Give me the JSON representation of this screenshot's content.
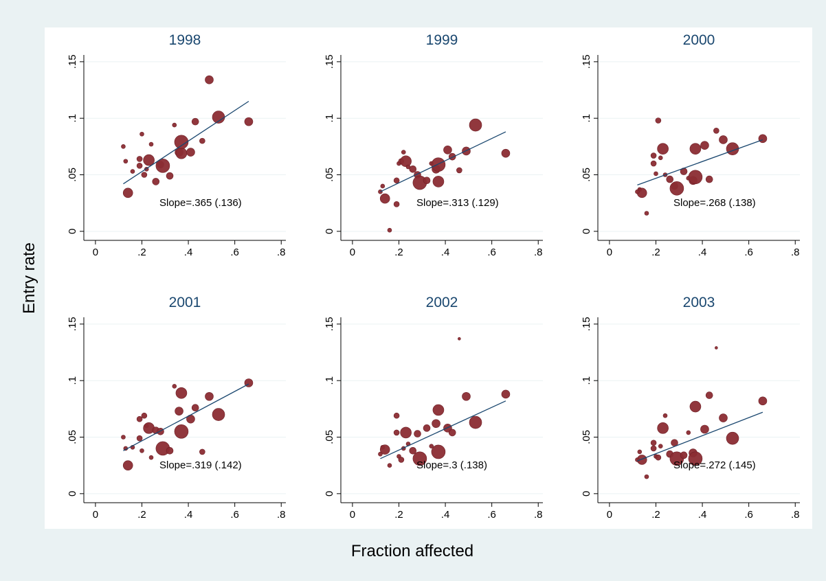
{
  "xlabel": "Fraction affected",
  "ylabel": "Entry rate",
  "chart_data": [
    {
      "type": "scatter",
      "title": "1998",
      "annotation": "Slope=.365 (.136)",
      "x": [
        0.13,
        0.14,
        0.12,
        0.16,
        0.19,
        0.2,
        0.19,
        0.21,
        0.22,
        0.23,
        0.24,
        0.26,
        0.28,
        0.29,
        0.32,
        0.34,
        0.36,
        0.37,
        0.37,
        0.41,
        0.43,
        0.46,
        0.49,
        0.53,
        0.66
      ],
      "y": [
        0.062,
        0.034,
        0.075,
        0.053,
        0.058,
        0.086,
        0.064,
        0.05,
        0.055,
        0.063,
        0.077,
        0.044,
        0.059,
        0.058,
        0.049,
        0.094,
        0.07,
        0.069,
        0.079,
        0.07,
        0.097,
        0.08,
        0.134,
        0.101,
        0.097
      ],
      "sizes": [
        3,
        7,
        3,
        3,
        4,
        3,
        4,
        4,
        3,
        8,
        3,
        5,
        5,
        10,
        5,
        3,
        6,
        8,
        10,
        6,
        5,
        4,
        6,
        9,
        6
      ],
      "fit_x": [
        0.12,
        0.66
      ],
      "fit_y": [
        0.042,
        0.115
      ],
      "color": "#8b2c33",
      "fit_color": "#1a476f",
      "xlim": [
        -0.05,
        0.82
      ],
      "ylim": [
        -0.008,
        0.156
      ],
      "xticks": [
        0,
        {
          "value": 0.2,
          "label": ".2"
        },
        {
          "value": 0.4,
          "label": ".4"
        },
        {
          "value": 0.6,
          "label": ".6"
        },
        {
          "value": 0.8,
          "label": ".8"
        }
      ],
      "yticks": [
        0,
        {
          "value": 0.05,
          "label": ".05"
        },
        {
          "value": 0.1,
          "label": ".1"
        },
        {
          "value": 0.15,
          "label": ".15"
        }
      ],
      "grid": true
    },
    {
      "type": "scatter",
      "title": "1999",
      "annotation": "Slope=.313 (.129)",
      "x": [
        0.13,
        0.14,
        0.12,
        0.16,
        0.19,
        0.2,
        0.19,
        0.21,
        0.22,
        0.23,
        0.24,
        0.26,
        0.28,
        0.29,
        0.32,
        0.34,
        0.36,
        0.37,
        0.37,
        0.41,
        0.43,
        0.46,
        0.49,
        0.53,
        0.66
      ],
      "y": [
        0.04,
        0.029,
        0.035,
        0.001,
        0.024,
        0.06,
        0.045,
        0.062,
        0.07,
        0.062,
        0.057,
        0.055,
        0.05,
        0.043,
        0.045,
        0.06,
        0.055,
        0.044,
        0.059,
        0.072,
        0.066,
        0.054,
        0.071,
        0.094,
        0.069
      ],
      "sizes": [
        3,
        7,
        3,
        3,
        4,
        3,
        4,
        4,
        3,
        8,
        3,
        5,
        5,
        10,
        5,
        3,
        6,
        8,
        10,
        6,
        5,
        4,
        6,
        9,
        6
      ],
      "fit_x": [
        0.12,
        0.66
      ],
      "fit_y": [
        0.035,
        0.088
      ],
      "color": "#8b2c33",
      "fit_color": "#1a476f",
      "xlim": [
        -0.05,
        0.82
      ],
      "ylim": [
        -0.008,
        0.156
      ],
      "xticks": [
        0,
        {
          "value": 0.2,
          "label": ".2"
        },
        {
          "value": 0.4,
          "label": ".4"
        },
        {
          "value": 0.6,
          "label": ".6"
        },
        {
          "value": 0.8,
          "label": ".8"
        }
      ],
      "yticks": [
        0,
        {
          "value": 0.05,
          "label": ".05"
        },
        {
          "value": 0.1,
          "label": ".1"
        },
        {
          "value": 0.15,
          "label": ".15"
        }
      ],
      "grid": true
    },
    {
      "type": "scatter",
      "title": "2000",
      "annotation": "Slope=.268 (.138)",
      "x": [
        0.13,
        0.14,
        0.12,
        0.16,
        0.19,
        0.2,
        0.19,
        0.21,
        0.22,
        0.23,
        0.24,
        0.26,
        0.28,
        0.29,
        0.32,
        0.34,
        0.36,
        0.37,
        0.37,
        0.41,
        0.43,
        0.46,
        0.49,
        0.53,
        0.66
      ],
      "y": [
        0.037,
        0.034,
        0.035,
        0.016,
        0.067,
        0.051,
        0.06,
        0.098,
        0.065,
        0.073,
        0.05,
        0.046,
        0.04,
        0.038,
        0.053,
        0.047,
        0.045,
        0.073,
        0.048,
        0.076,
        0.046,
        0.089,
        0.081,
        0.073,
        0.082
      ],
      "sizes": [
        3,
        7,
        3,
        3,
        4,
        3,
        4,
        4,
        3,
        8,
        3,
        5,
        5,
        10,
        5,
        3,
        6,
        8,
        10,
        6,
        5,
        4,
        6,
        9,
        6
      ],
      "fit_x": [
        0.12,
        0.66
      ],
      "fit_y": [
        0.041,
        0.081
      ],
      "color": "#8b2c33",
      "fit_color": "#1a476f",
      "xlim": [
        -0.05,
        0.82
      ],
      "ylim": [
        -0.008,
        0.156
      ],
      "xticks": [
        0,
        {
          "value": 0.2,
          "label": ".2"
        },
        {
          "value": 0.4,
          "label": ".4"
        },
        {
          "value": 0.6,
          "label": ".6"
        },
        {
          "value": 0.8,
          "label": ".8"
        }
      ],
      "yticks": [
        0,
        {
          "value": 0.05,
          "label": ".05"
        },
        {
          "value": 0.1,
          "label": ".1"
        },
        {
          "value": 0.15,
          "label": ".15"
        }
      ],
      "grid": true
    },
    {
      "type": "scatter",
      "title": "2001",
      "annotation": "Slope=.319 (.142)",
      "x": [
        0.13,
        0.14,
        0.12,
        0.16,
        0.19,
        0.2,
        0.19,
        0.21,
        0.22,
        0.23,
        0.24,
        0.26,
        0.28,
        0.29,
        0.32,
        0.34,
        0.36,
        0.37,
        0.37,
        0.41,
        0.43,
        0.46,
        0.49,
        0.53,
        0.66
      ],
      "y": [
        0.04,
        0.025,
        0.05,
        0.041,
        0.066,
        0.038,
        0.049,
        0.069,
        0.06,
        0.058,
        0.032,
        0.056,
        0.055,
        0.04,
        0.038,
        0.095,
        0.073,
        0.089,
        0.055,
        0.066,
        0.076,
        0.037,
        0.086,
        0.07,
        0.098
      ],
      "sizes": [
        3,
        7,
        3,
        3,
        4,
        3,
        4,
        4,
        3,
        8,
        3,
        5,
        5,
        10,
        5,
        3,
        6,
        8,
        10,
        6,
        5,
        4,
        6,
        9,
        6
      ],
      "fit_x": [
        0.12,
        0.66
      ],
      "fit_y": [
        0.038,
        0.097
      ],
      "color": "#8b2c33",
      "fit_color": "#1a476f",
      "xlim": [
        -0.05,
        0.82
      ],
      "ylim": [
        -0.008,
        0.156
      ],
      "xticks": [
        0,
        {
          "value": 0.2,
          "label": ".2"
        },
        {
          "value": 0.4,
          "label": ".4"
        },
        {
          "value": 0.6,
          "label": ".6"
        },
        {
          "value": 0.8,
          "label": ".8"
        }
      ],
      "yticks": [
        0,
        {
          "value": 0.05,
          "label": ".05"
        },
        {
          "value": 0.1,
          "label": ".1"
        },
        {
          "value": 0.15,
          "label": ".15"
        }
      ],
      "grid": true
    },
    {
      "type": "scatter",
      "title": "2002",
      "annotation": "Slope=.3 (.138)",
      "x": [
        0.13,
        0.14,
        0.12,
        0.16,
        0.19,
        0.2,
        0.19,
        0.21,
        0.22,
        0.23,
        0.24,
        0.26,
        0.28,
        0.29,
        0.32,
        0.34,
        0.36,
        0.37,
        0.37,
        0.41,
        0.43,
        0.46,
        0.49,
        0.53,
        0.66
      ],
      "y": [
        0.041,
        0.039,
        0.035,
        0.025,
        0.069,
        0.033,
        0.054,
        0.03,
        0.04,
        0.054,
        0.044,
        0.038,
        0.053,
        0.031,
        0.058,
        0.042,
        0.062,
        0.074,
        0.037,
        0.058,
        0.054,
        0.137,
        0.086,
        0.063,
        0.088
      ],
      "sizes": [
        3,
        7,
        3,
        3,
        4,
        3,
        4,
        4,
        3,
        8,
        3,
        5,
        5,
        10,
        5,
        3,
        6,
        8,
        10,
        6,
        5,
        2,
        6,
        9,
        6
      ],
      "fit_x": [
        0.12,
        0.66
      ],
      "fit_y": [
        0.031,
        0.082
      ],
      "color": "#8b2c33",
      "fit_color": "#1a476f",
      "xlim": [
        -0.05,
        0.82
      ],
      "ylim": [
        -0.008,
        0.156
      ],
      "xticks": [
        0,
        {
          "value": 0.2,
          "label": ".2"
        },
        {
          "value": 0.4,
          "label": ".4"
        },
        {
          "value": 0.6,
          "label": ".6"
        },
        {
          "value": 0.8,
          "label": ".8"
        }
      ],
      "yticks": [
        0,
        {
          "value": 0.05,
          "label": ".05"
        },
        {
          "value": 0.1,
          "label": ".1"
        },
        {
          "value": 0.15,
          "label": ".15"
        }
      ],
      "grid": true
    },
    {
      "type": "scatter",
      "title": "2003",
      "annotation": "Slope=.272 (.145)",
      "x": [
        0.13,
        0.14,
        0.12,
        0.16,
        0.19,
        0.2,
        0.19,
        0.21,
        0.22,
        0.23,
        0.24,
        0.26,
        0.28,
        0.29,
        0.32,
        0.34,
        0.36,
        0.37,
        0.37,
        0.41,
        0.43,
        0.46,
        0.49,
        0.53,
        0.66
      ],
      "y": [
        0.037,
        0.03,
        0.03,
        0.015,
        0.045,
        0.033,
        0.04,
        0.032,
        0.042,
        0.058,
        0.069,
        0.035,
        0.045,
        0.031,
        0.034,
        0.054,
        0.036,
        0.077,
        0.031,
        0.057,
        0.087,
        0.129,
        0.067,
        0.049,
        0.082
      ],
      "sizes": [
        3,
        7,
        3,
        3,
        4,
        3,
        4,
        4,
        3,
        8,
        3,
        5,
        5,
        10,
        5,
        3,
        6,
        8,
        10,
        6,
        5,
        2,
        6,
        9,
        6
      ],
      "fit_x": [
        0.12,
        0.66
      ],
      "fit_y": [
        0.029,
        0.072
      ],
      "color": "#8b2c33",
      "fit_color": "#1a476f",
      "xlim": [
        -0.05,
        0.82
      ],
      "ylim": [
        -0.008,
        0.156
      ],
      "xticks": [
        0,
        {
          "value": 0.2,
          "label": ".2"
        },
        {
          "value": 0.4,
          "label": ".4"
        },
        {
          "value": 0.6,
          "label": ".6"
        },
        {
          "value": 0.8,
          "label": ".8"
        }
      ],
      "yticks": [
        0,
        {
          "value": 0.05,
          "label": ".05"
        },
        {
          "value": 0.1,
          "label": ".1"
        },
        {
          "value": 0.15,
          "label": ".15"
        }
      ],
      "grid": true
    }
  ]
}
